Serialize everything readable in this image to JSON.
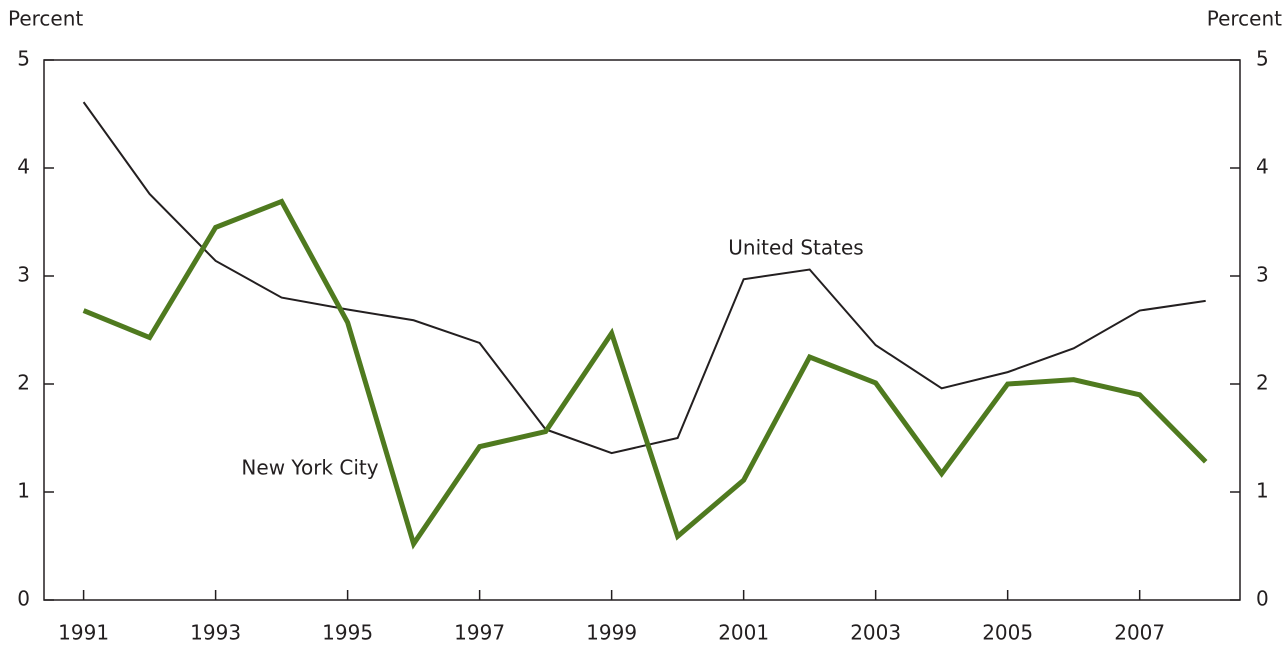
{
  "chart_data": {
    "type": "line",
    "ylabel": "Percent",
    "y2label": "Percent",
    "x": [
      1991,
      1992,
      1993,
      1994,
      1995,
      1996,
      1997,
      1998,
      1999,
      2000,
      2001,
      2002,
      2003,
      2004,
      2005,
      2006,
      2007,
      2008
    ],
    "xlim": [
      1990.4,
      2008.52
    ],
    "xticks": [
      1991,
      1993,
      1995,
      1997,
      1999,
      2001,
      2003,
      2005,
      2007
    ],
    "ylim": [
      0,
      5
    ],
    "yticks": [
      0,
      1,
      2,
      3,
      4,
      5
    ],
    "y2lim": [
      0,
      5
    ],
    "y2ticks": [
      0,
      1,
      2,
      3,
      4,
      5
    ],
    "grid": false,
    "series": [
      {
        "name": "United States",
        "color": "#231f20",
        "values": [
          4.61,
          3.76,
          3.14,
          2.8,
          2.69,
          2.59,
          2.38,
          1.58,
          1.36,
          1.5,
          2.97,
          3.06,
          2.36,
          1.96,
          2.11,
          2.33,
          2.68,
          2.77
        ]
      },
      {
        "name": "New York City",
        "color": "#4f7a1f",
        "values": [
          2.68,
          2.43,
          3.45,
          3.69,
          2.57,
          0.52,
          1.42,
          1.56,
          2.47,
          0.59,
          1.11,
          2.25,
          2.01,
          1.17,
          2.0,
          2.04,
          1.9,
          1.28
        ]
      }
    ]
  }
}
